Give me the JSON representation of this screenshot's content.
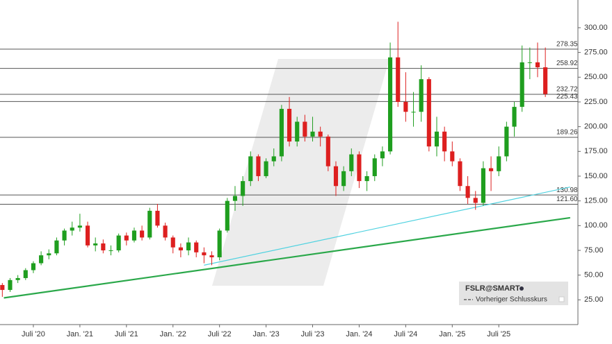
{
  "chart_data": {
    "type": "candlestick",
    "symbol": "FSLR@SMART",
    "legend_entry": "Vorheriger Schlusskurs",
    "colors": {
      "up": "#1f9e1f",
      "down": "#dd1f1f",
      "level": "#555555",
      "support": "#2aa84a",
      "trend": "#4fd2e0"
    },
    "x": [
      2,
      3,
      4,
      5,
      6,
      7,
      8,
      9,
      10,
      11,
      12,
      13,
      14,
      15,
      16,
      17,
      18,
      19,
      20,
      21,
      22,
      23,
      24,
      25,
      26,
      27,
      28,
      29,
      30,
      31,
      32,
      33,
      34,
      35,
      36,
      37,
      38,
      39,
      40,
      41,
      42,
      43,
      44,
      45,
      46,
      47,
      48,
      49,
      50,
      51,
      52,
      53,
      54,
      55,
      56,
      57,
      58,
      59,
      60,
      61,
      62,
      63,
      64,
      65,
      66,
      67,
      68,
      69,
      70,
      71,
      72
    ],
    "open": [
      40,
      35,
      45,
      47,
      55,
      62,
      70,
      72,
      85,
      95,
      98,
      100,
      80,
      82,
      75,
      75,
      90,
      85,
      95,
      88,
      115,
      100,
      88,
      78,
      75,
      83,
      73,
      70,
      68,
      95,
      125,
      130,
      145,
      170,
      150,
      165,
      170,
      218,
      185,
      205,
      190,
      195,
      190,
      160,
      140,
      155,
      172,
      145,
      150,
      168,
      175,
      270,
      225,
      215,
      215,
      248,
      180,
      195,
      175,
      165,
      140,
      128,
      123,
      158,
      155,
      170,
      200,
      220,
      265,
      265,
      260
    ],
    "high": [
      42,
      47,
      50,
      57,
      64,
      74,
      76,
      88,
      97,
      104,
      112,
      104,
      88,
      86,
      80,
      92,
      93,
      98,
      100,
      118,
      122,
      103,
      90,
      82,
      88,
      85,
      78,
      74,
      97,
      128,
      140,
      150,
      175,
      172,
      168,
      178,
      222,
      230,
      210,
      212,
      210,
      200,
      192,
      165,
      160,
      178,
      175,
      155,
      172,
      180,
      285,
      306,
      255,
      235,
      262,
      250,
      210,
      200,
      185,
      168,
      150,
      135,
      165,
      170,
      180,
      205,
      225,
      282,
      280,
      285,
      280
    ],
    "low": [
      28,
      33,
      42,
      45,
      52,
      60,
      66,
      70,
      80,
      90,
      94,
      78,
      74,
      72,
      70,
      73,
      80,
      83,
      85,
      86,
      98,
      85,
      72,
      68,
      70,
      68,
      62,
      60,
      65,
      93,
      115,
      120,
      140,
      145,
      148,
      160,
      165,
      180,
      180,
      185,
      185,
      180,
      155,
      130,
      135,
      150,
      138,
      135,
      145,
      160,
      172,
      220,
      205,
      200,
      205,
      175,
      170,
      165,
      160,
      135,
      122,
      116,
      120,
      135,
      150,
      165,
      190,
      215,
      248,
      250,
      230
    ],
    "close": [
      35,
      45,
      47,
      55,
      62,
      70,
      72,
      85,
      95,
      98,
      100,
      80,
      82,
      75,
      75,
      90,
      85,
      95,
      88,
      115,
      100,
      88,
      78,
      75,
      83,
      73,
      70,
      68,
      95,
      125,
      130,
      145,
      170,
      150,
      165,
      170,
      218,
      185,
      205,
      190,
      195,
      190,
      160,
      140,
      155,
      172,
      145,
      150,
      168,
      175,
      270,
      225,
      215,
      215,
      248,
      180,
      195,
      175,
      165,
      140,
      128,
      123,
      158,
      155,
      170,
      200,
      220,
      265,
      265,
      260,
      233
    ],
    "levels": [
      {
        "value": 278.35,
        "label": "278.35"
      },
      {
        "value": 258.92,
        "label": "258.92"
      },
      {
        "value": 232.72,
        "label": "232.72"
      },
      {
        "value": 225.43,
        "label": "225.43"
      },
      {
        "value": 189.26,
        "label": "189.26"
      },
      {
        "value": 130.98,
        "label": "130.98"
      },
      {
        "value": 121.6,
        "label": "121.60"
      }
    ],
    "trendlines": [
      {
        "x": [
          2.2,
          75.2
        ],
        "values": [
          27,
          108
        ],
        "color_key": "support"
      },
      {
        "x": [
          28,
          75.2
        ],
        "values": [
          60,
          139
        ],
        "color_key": "trend"
      }
    ],
    "xlim": [
      1.7,
      76.2
    ],
    "ylim": [
      0,
      328
    ],
    "xticks": [
      {
        "value": 6,
        "label": "Juli '20"
      },
      {
        "value": 12,
        "label": "Jan. '21"
      },
      {
        "value": 18,
        "label": "Juli '21"
      },
      {
        "value": 24,
        "label": "Jan. '22"
      },
      {
        "value": 30,
        "label": "Juli '22"
      },
      {
        "value": 36,
        "label": "Jan. '23"
      },
      {
        "value": 42,
        "label": "Juli '23"
      },
      {
        "value": 48,
        "label": "Jan. '24"
      },
      {
        "value": 54,
        "label": "Juli '24"
      },
      {
        "value": 60,
        "label": "Jan. '25"
      },
      {
        "value": 66,
        "label": "Juli '25"
      }
    ],
    "yticks": [
      {
        "value": 25,
        "label": "25.00"
      },
      {
        "value": 50,
        "label": "50.00"
      },
      {
        "value": 75,
        "label": "75.00"
      },
      {
        "value": 100,
        "label": "100.00"
      },
      {
        "value": 125,
        "label": "125.00"
      },
      {
        "value": 150,
        "label": "150.00"
      },
      {
        "value": 175,
        "label": "175.00"
      },
      {
        "value": 200,
        "label": "200.00"
      },
      {
        "value": 225,
        "label": "225.00"
      },
      {
        "value": 250,
        "label": "250.00"
      },
      {
        "value": 275,
        "label": "275.00"
      },
      {
        "value": 300,
        "label": "300.00"
      }
    ]
  }
}
